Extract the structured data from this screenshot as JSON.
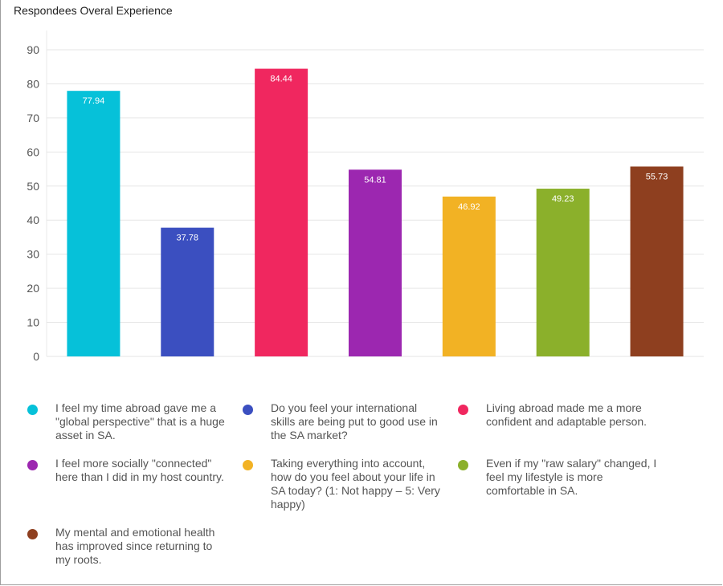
{
  "title": "Respondees Overal Experience",
  "chart_data": {
    "type": "bar",
    "ylim": [
      0,
      90
    ],
    "yticks": [
      0,
      10,
      20,
      30,
      40,
      50,
      60,
      70,
      80,
      90
    ],
    "grid": true,
    "legend_position": "bottom",
    "series": [
      {
        "name": "I feel my time abroad gave me a \"global perspective\" that is a huge asset in SA.",
        "value": 77.94,
        "label": "77.94",
        "color": "#06c1d9"
      },
      {
        "name": "Do you feel your international skills are being put to good use in the SA market?",
        "value": 37.78,
        "label": "37.78",
        "color": "#3b4fc0"
      },
      {
        "name": "Living abroad made me a more confident and adaptable person.",
        "value": 84.44,
        "label": "84.44",
        "color": "#f0275f"
      },
      {
        "name": "I feel more socially \"connected\" here than I did in my host country.",
        "value": 54.81,
        "label": "54.81",
        "color": "#9c27b0"
      },
      {
        "name": "Taking everything into account, how do you feel about your life in SA today? (1: Not happy – 5: Very happy)",
        "value": 46.92,
        "label": "46.92",
        "color": "#f2b224"
      },
      {
        "name": "Even if my \"raw salary\" changed, I feel my lifestyle is more comfortable in SA.",
        "value": 49.23,
        "label": "49.23",
        "color": "#8bb02b"
      },
      {
        "name": "My mental and emotional health has improved since returning to my roots.",
        "value": 55.73,
        "label": "55.73",
        "color": "#8e3f1f"
      }
    ]
  }
}
